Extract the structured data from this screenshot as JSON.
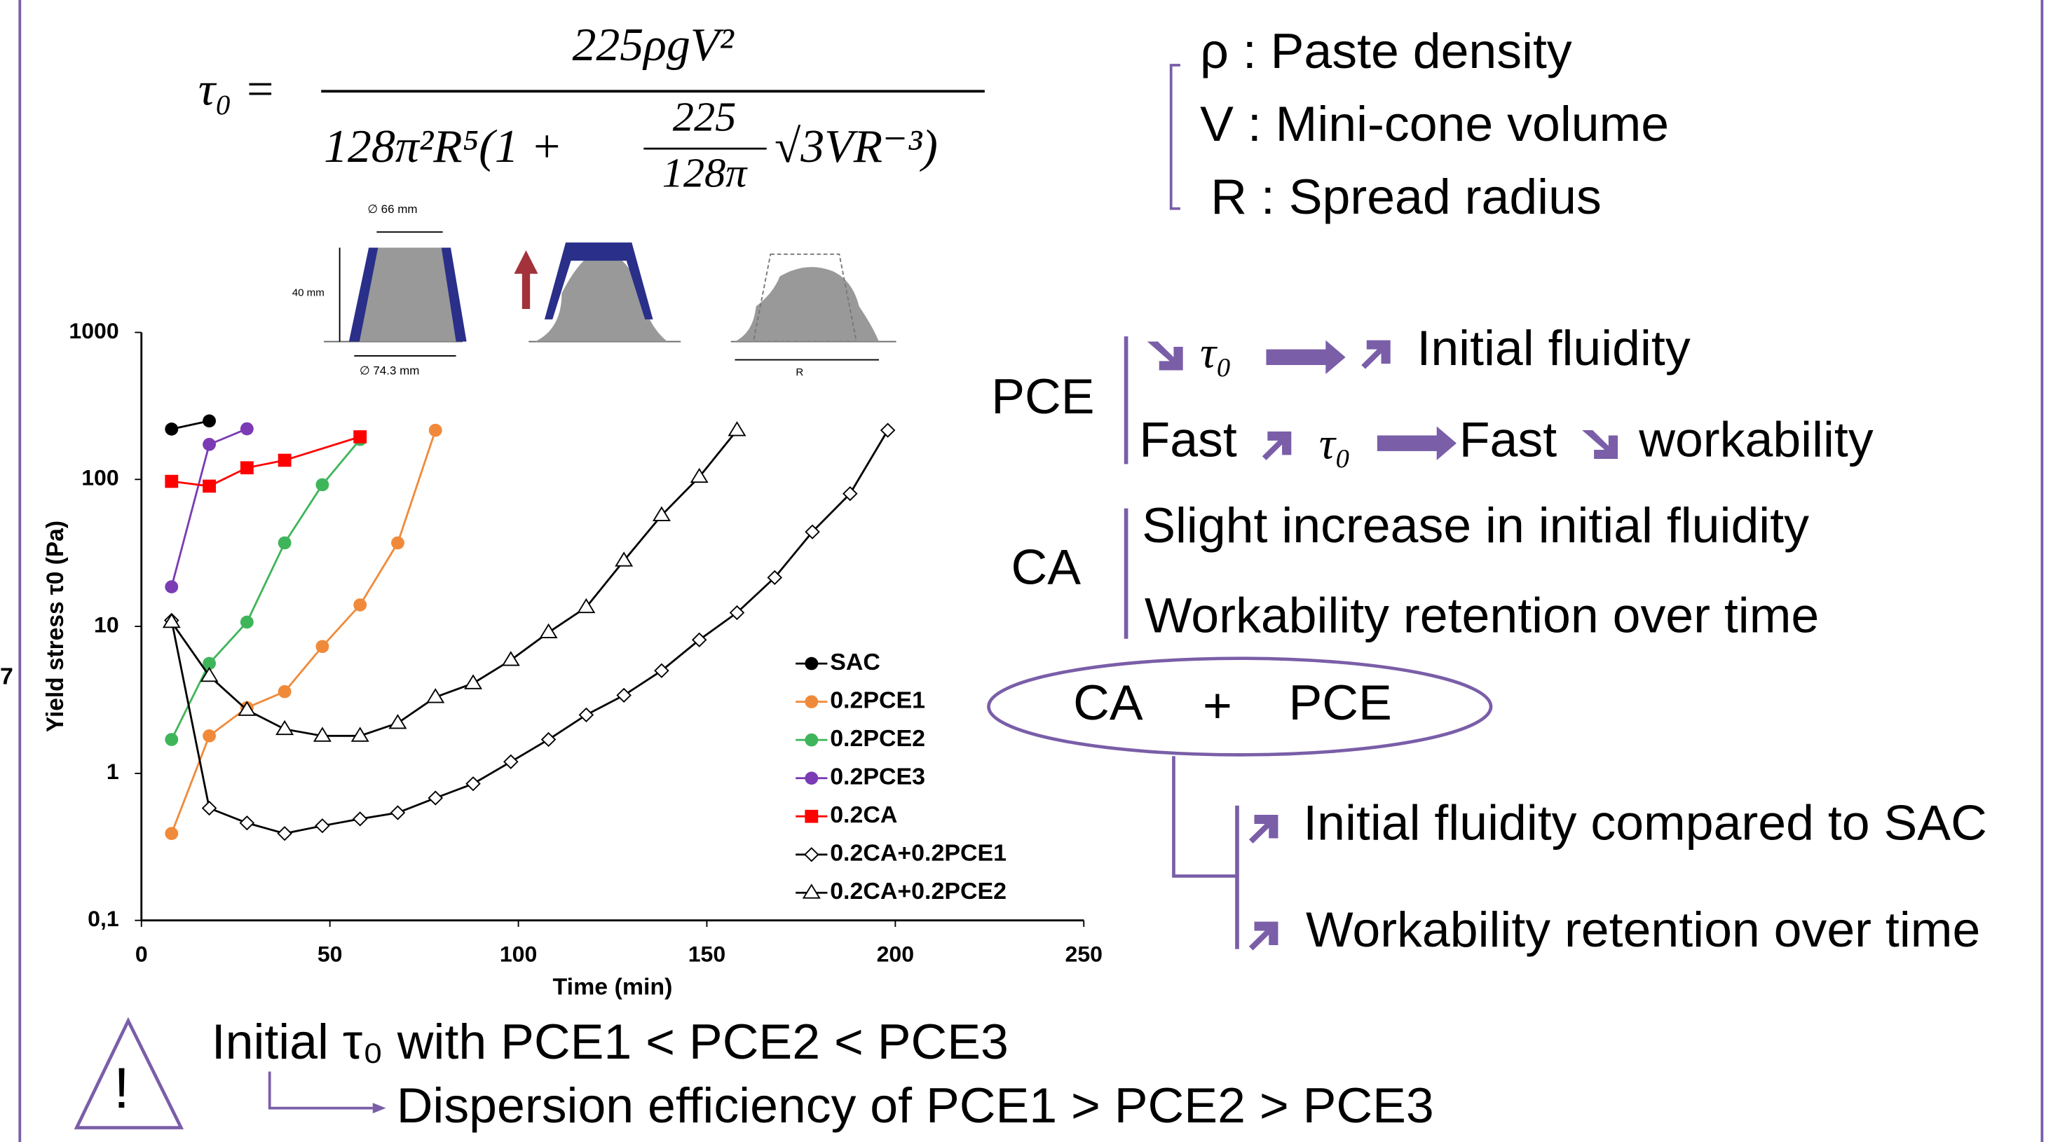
{
  "slide_number": "7",
  "formula": {
    "lhs": "τ₀ =",
    "numerator": "225ρgV²",
    "denominator_start": "128π²R⁵(1 +",
    "inner_numerator": "225",
    "inner_denominator": "128π",
    "denominator_end": "√3VR⁻³)"
  },
  "cone_labels": {
    "top_diameter": "∅ 66 mm",
    "height": "40 mm",
    "bottom_diameter": "∅ 74.3 mm",
    "radius": "R"
  },
  "definitions": [
    "ρ : Paste density",
    "V : Mini-cone volume",
    "R : Spread radius"
  ],
  "pce": {
    "label": "PCE",
    "line1_symbol": "τ₀",
    "line1_text": "Initial fluidity",
    "line2_a": "Fast",
    "line2_symbol": "τ₀",
    "line2_b": "Fast",
    "line2_c": "workability"
  },
  "ca": {
    "label": "CA",
    "line1": "Slight increase in initial fluidity",
    "line2": "Workability retention over time"
  },
  "combo": {
    "left": "CA",
    "plus": "+",
    "right": "PCE",
    "line1": "Initial fluidity compared to SAC",
    "line2": "Workability retention over time"
  },
  "warning": {
    "icon": "!",
    "line1": "Initial τ₀ with PCE1 < PCE2 < PCE3",
    "line2": "Dispersion efficiency of PCE1 > PCE2 > PCE3"
  },
  "chart_data": {
    "type": "line",
    "x_label": "Time (min)",
    "y_label": "Yield stress τ0 (Pa)",
    "xlim": [
      0,
      250
    ],
    "xticks": [
      0,
      50,
      100,
      150,
      200,
      250
    ],
    "ylim": [
      0.1,
      1000
    ],
    "yticks": [
      {
        "value": 0.1,
        "label": "0,1"
      },
      1,
      10,
      100,
      1000
    ],
    "y_scale": "log",
    "grid": false,
    "legend": "lower right",
    "series": [
      {
        "name": "SAC",
        "color": "#000000",
        "marker": "circle",
        "x": [
          8,
          18
        ],
        "values": [
          220,
          250
        ]
      },
      {
        "name": "0.2PCE1",
        "color": "#f08a3a",
        "marker": "circle",
        "x": [
          8,
          18,
          28,
          38,
          48,
          58,
          68,
          78
        ],
        "values": [
          0.39,
          1.8,
          2.8,
          3.6,
          7.3,
          14,
          37,
          216
        ]
      },
      {
        "name": "0.2PCE2",
        "color": "#3fb55a",
        "marker": "circle",
        "x": [
          8,
          18,
          28,
          38,
          48,
          58
        ],
        "values": [
          1.7,
          5.6,
          10.7,
          37,
          92,
          187
        ]
      },
      {
        "name": "0.2PCE3",
        "color": "#7a3bb5",
        "marker": "circle",
        "x": [
          8,
          18,
          28
        ],
        "values": [
          18.6,
          173,
          221
        ]
      },
      {
        "name": "0.2CA",
        "color": "#ff0000",
        "marker": "square",
        "x": [
          8,
          18,
          28,
          38,
          58
        ],
        "values": [
          97,
          90,
          120,
          135,
          195
        ]
      },
      {
        "name": "0.2CA+0.2PCE1",
        "color": "#000000",
        "marker": "diamond",
        "x": [
          8,
          18,
          28,
          38,
          48,
          58,
          68,
          78,
          88,
          98,
          108,
          118,
          128,
          138,
          148,
          158,
          168,
          178,
          188,
          198
        ],
        "values": [
          11,
          0.58,
          0.46,
          0.39,
          0.44,
          0.49,
          0.54,
          0.68,
          0.85,
          1.2,
          1.7,
          2.5,
          3.4,
          5.0,
          8.1,
          12.4,
          21.5,
          44,
          80,
          216
        ]
      },
      {
        "name": "0.2CA+0.2PCE2",
        "color": "#000000",
        "marker": "triangle",
        "x": [
          8,
          18,
          28,
          38,
          48,
          58,
          68,
          78,
          88,
          98,
          108,
          118,
          128,
          138,
          148,
          158
        ],
        "values": [
          10.7,
          4.6,
          2.7,
          2.0,
          1.8,
          1.8,
          2.2,
          3.3,
          4.1,
          5.9,
          9.1,
          13.5,
          28,
          57,
          104,
          216
        ]
      }
    ]
  }
}
